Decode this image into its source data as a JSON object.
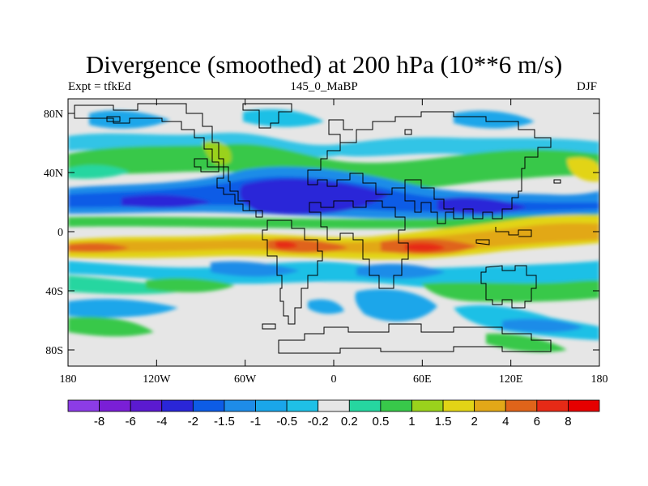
{
  "title": "Divergence (smoothed) at 200 hPa (10**6 m/s)",
  "left_label": "Expt = tfkEd",
  "center_label": "145_0_MaBP",
  "right_label": "DJF",
  "lon_ticks": [
    "180",
    "120W",
    "60W",
    "0",
    "60E",
    "120E",
    "180"
  ],
  "lat_ticks": [
    "80N",
    "40N",
    "0",
    "40S",
    "80S"
  ],
  "colorbar": {
    "labels": [
      "-8",
      "-6",
      "-4",
      "-2",
      "-1.5",
      "-1",
      "-0.5",
      "-0.2",
      "0.2",
      "0.5",
      "1",
      "1.5",
      "2",
      "4",
      "6",
      "8"
    ],
    "colors": [
      "#8c3ce6",
      "#7a1fd6",
      "#5b1ad0",
      "#2a26d8",
      "#0d5ce6",
      "#1e8ce8",
      "#1aa6ea",
      "#1fc0e6",
      "#e6e6e6",
      "#26d6a0",
      "#38c84a",
      "#9ad21c",
      "#e2d416",
      "#e2a818",
      "#e0641a",
      "#e62a16",
      "#e60000"
    ]
  },
  "colors": {
    "neutral": "#e6e6e6",
    "outline": "#000000"
  }
}
